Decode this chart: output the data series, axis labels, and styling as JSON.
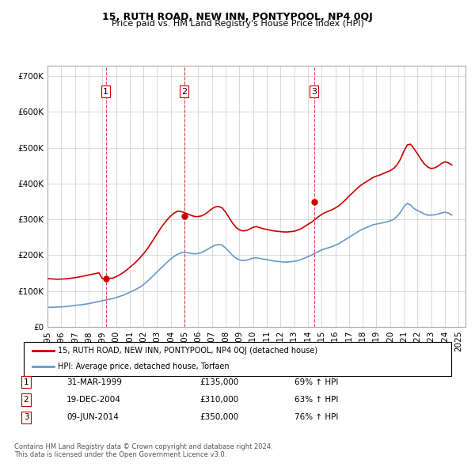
{
  "title": "15, RUTH ROAD, NEW INN, PONTYPOOL, NP4 0QJ",
  "subtitle": "Price paid vs. HM Land Registry's House Price Index (HPI)",
  "ylabel_ticks": [
    "£0",
    "£100K",
    "£200K",
    "£300K",
    "£400K",
    "£500K",
    "£600K",
    "£700K"
  ],
  "ytick_values": [
    0,
    100000,
    200000,
    300000,
    400000,
    500000,
    600000,
    700000
  ],
  "ylim": [
    0,
    730000
  ],
  "xlim_start": 1995.0,
  "xlim_end": 2025.5,
  "red_line_color": "#cc0000",
  "blue_line_color": "#6699cc",
  "transaction_marker_color": "#cc0000",
  "vline_color": "#cc0000",
  "grid_color": "#cccccc",
  "legend_label_red": "15, RUTH ROAD, NEW INN, PONTYPOOL, NP4 0QJ (detached house)",
  "legend_label_blue": "HPI: Average price, detached house, Torfaen",
  "transactions": [
    {
      "num": 1,
      "date": "31-MAR-1999",
      "price": 135000,
      "pct": "69%",
      "year": 1999.25
    },
    {
      "num": 2,
      "date": "19-DEC-2004",
      "price": 310000,
      "pct": "63%",
      "year": 2004.97
    },
    {
      "num": 3,
      "date": "09-JUN-2014",
      "price": 350000,
      "pct": "76%",
      "year": 2014.44
    }
  ],
  "footer_line1": "Contains HM Land Registry data © Crown copyright and database right 2024.",
  "footer_line2": "This data is licensed under the Open Government Licence v3.0.",
  "hpi_years": [
    1995.0,
    1995.25,
    1995.5,
    1995.75,
    1996.0,
    1996.25,
    1996.5,
    1996.75,
    1997.0,
    1997.25,
    1997.5,
    1997.75,
    1998.0,
    1998.25,
    1998.5,
    1998.75,
    1999.0,
    1999.25,
    1999.5,
    1999.75,
    2000.0,
    2000.25,
    2000.5,
    2000.75,
    2001.0,
    2001.25,
    2001.5,
    2001.75,
    2002.0,
    2002.25,
    2002.5,
    2002.75,
    2003.0,
    2003.25,
    2003.5,
    2003.75,
    2004.0,
    2004.25,
    2004.5,
    2004.75,
    2005.0,
    2005.25,
    2005.5,
    2005.75,
    2006.0,
    2006.25,
    2006.5,
    2006.75,
    2007.0,
    2007.25,
    2007.5,
    2007.75,
    2008.0,
    2008.25,
    2008.5,
    2008.75,
    2009.0,
    2009.25,
    2009.5,
    2009.75,
    2010.0,
    2010.25,
    2010.5,
    2010.75,
    2011.0,
    2011.25,
    2011.5,
    2011.75,
    2012.0,
    2012.25,
    2012.5,
    2012.75,
    2013.0,
    2013.25,
    2013.5,
    2013.75,
    2014.0,
    2014.25,
    2014.5,
    2014.75,
    2015.0,
    2015.25,
    2015.5,
    2015.75,
    2016.0,
    2016.25,
    2016.5,
    2016.75,
    2017.0,
    2017.25,
    2017.5,
    2017.75,
    2018.0,
    2018.25,
    2018.5,
    2018.75,
    2019.0,
    2019.25,
    2019.5,
    2019.75,
    2020.0,
    2020.25,
    2020.5,
    2020.75,
    2021.0,
    2021.25,
    2021.5,
    2021.75,
    2022.0,
    2022.25,
    2022.5,
    2022.75,
    2023.0,
    2023.25,
    2023.5,
    2023.75,
    2024.0,
    2024.25,
    2024.5
  ],
  "hpi_values": [
    55000,
    54500,
    55000,
    55500,
    56000,
    56500,
    57500,
    58500,
    60000,
    61000,
    62000,
    63500,
    65000,
    67000,
    69000,
    71000,
    73000,
    75000,
    77000,
    79000,
    82000,
    85000,
    88000,
    92000,
    97000,
    101000,
    106000,
    111000,
    118000,
    126000,
    135000,
    144000,
    154000,
    163000,
    172000,
    181000,
    190000,
    197000,
    203000,
    207000,
    208000,
    207000,
    205000,
    204000,
    205000,
    208000,
    213000,
    218000,
    224000,
    228000,
    230000,
    228000,
    220000,
    210000,
    200000,
    192000,
    187000,
    185000,
    186000,
    189000,
    192000,
    193000,
    191000,
    189000,
    188000,
    186000,
    184000,
    183000,
    182000,
    181000,
    181000,
    182000,
    183000,
    185000,
    188000,
    192000,
    196000,
    200000,
    205000,
    210000,
    215000,
    218000,
    221000,
    224000,
    228000,
    232000,
    238000,
    244000,
    250000,
    256000,
    262000,
    268000,
    273000,
    277000,
    281000,
    285000,
    287000,
    289000,
    291000,
    293000,
    296000,
    300000,
    308000,
    320000,
    335000,
    345000,
    340000,
    330000,
    325000,
    320000,
    315000,
    312000,
    312000,
    313000,
    315000,
    318000,
    320000,
    318000,
    312000
  ],
  "red_years": [
    1995.0,
    1995.25,
    1995.5,
    1995.75,
    1996.0,
    1996.25,
    1996.5,
    1996.75,
    1997.0,
    1997.25,
    1997.5,
    1997.75,
    1998.0,
    1998.25,
    1998.5,
    1998.75,
    1999.0,
    1999.25,
    1999.5,
    1999.75,
    2000.0,
    2000.25,
    2000.5,
    2000.75,
    2001.0,
    2001.25,
    2001.5,
    2001.75,
    2002.0,
    2002.25,
    2002.5,
    2002.75,
    2003.0,
    2003.25,
    2003.5,
    2003.75,
    2004.0,
    2004.25,
    2004.5,
    2004.75,
    2005.0,
    2005.25,
    2005.5,
    2005.75,
    2006.0,
    2006.25,
    2006.5,
    2006.75,
    2007.0,
    2007.25,
    2007.5,
    2007.75,
    2008.0,
    2008.25,
    2008.5,
    2008.75,
    2009.0,
    2009.25,
    2009.5,
    2009.75,
    2010.0,
    2010.25,
    2010.5,
    2010.75,
    2011.0,
    2011.25,
    2011.5,
    2011.75,
    2012.0,
    2012.25,
    2012.5,
    2012.75,
    2013.0,
    2013.25,
    2013.5,
    2013.75,
    2014.0,
    2014.25,
    2014.5,
    2014.75,
    2015.0,
    2015.25,
    2015.5,
    2015.75,
    2016.0,
    2016.25,
    2016.5,
    2016.75,
    2017.0,
    2017.25,
    2017.5,
    2017.75,
    2018.0,
    2018.25,
    2018.5,
    2018.75,
    2019.0,
    2019.25,
    2019.5,
    2019.75,
    2020.0,
    2020.25,
    2020.5,
    2020.75,
    2021.0,
    2021.25,
    2021.5,
    2021.75,
    2022.0,
    2022.25,
    2022.5,
    2022.75,
    2023.0,
    2023.25,
    2023.5,
    2023.75,
    2024.0,
    2024.25,
    2024.5
  ],
  "red_values": [
    135000,
    134000,
    133500,
    133000,
    133500,
    134000,
    135000,
    136000,
    137500,
    139000,
    141000,
    143000,
    145000,
    147000,
    149000,
    151000,
    135000,
    135000,
    135500,
    136000,
    140000,
    145000,
    151000,
    158000,
    166000,
    174000,
    183000,
    193000,
    204000,
    216000,
    230000,
    245000,
    260000,
    275000,
    288000,
    300000,
    310000,
    318000,
    323000,
    322000,
    319000,
    315000,
    311000,
    308000,
    308000,
    310000,
    315000,
    322000,
    330000,
    335000,
    336000,
    332000,
    320000,
    305000,
    290000,
    278000,
    271000,
    268000,
    269000,
    273000,
    278000,
    280000,
    277000,
    274000,
    272000,
    270000,
    268000,
    267000,
    266000,
    265000,
    265000,
    266000,
    267000,
    270000,
    274000,
    280000,
    286000,
    292000,
    299000,
    307000,
    314000,
    319000,
    323000,
    327000,
    332000,
    338000,
    346000,
    355000,
    365000,
    374000,
    383000,
    392000,
    399000,
    405000,
    411000,
    417000,
    421000,
    424000,
    428000,
    432000,
    436000,
    442000,
    452000,
    468000,
    490000,
    508000,
    510000,
    497000,
    483000,
    468000,
    455000,
    446000,
    442000,
    444000,
    449000,
    456000,
    461000,
    458000,
    452000
  ]
}
